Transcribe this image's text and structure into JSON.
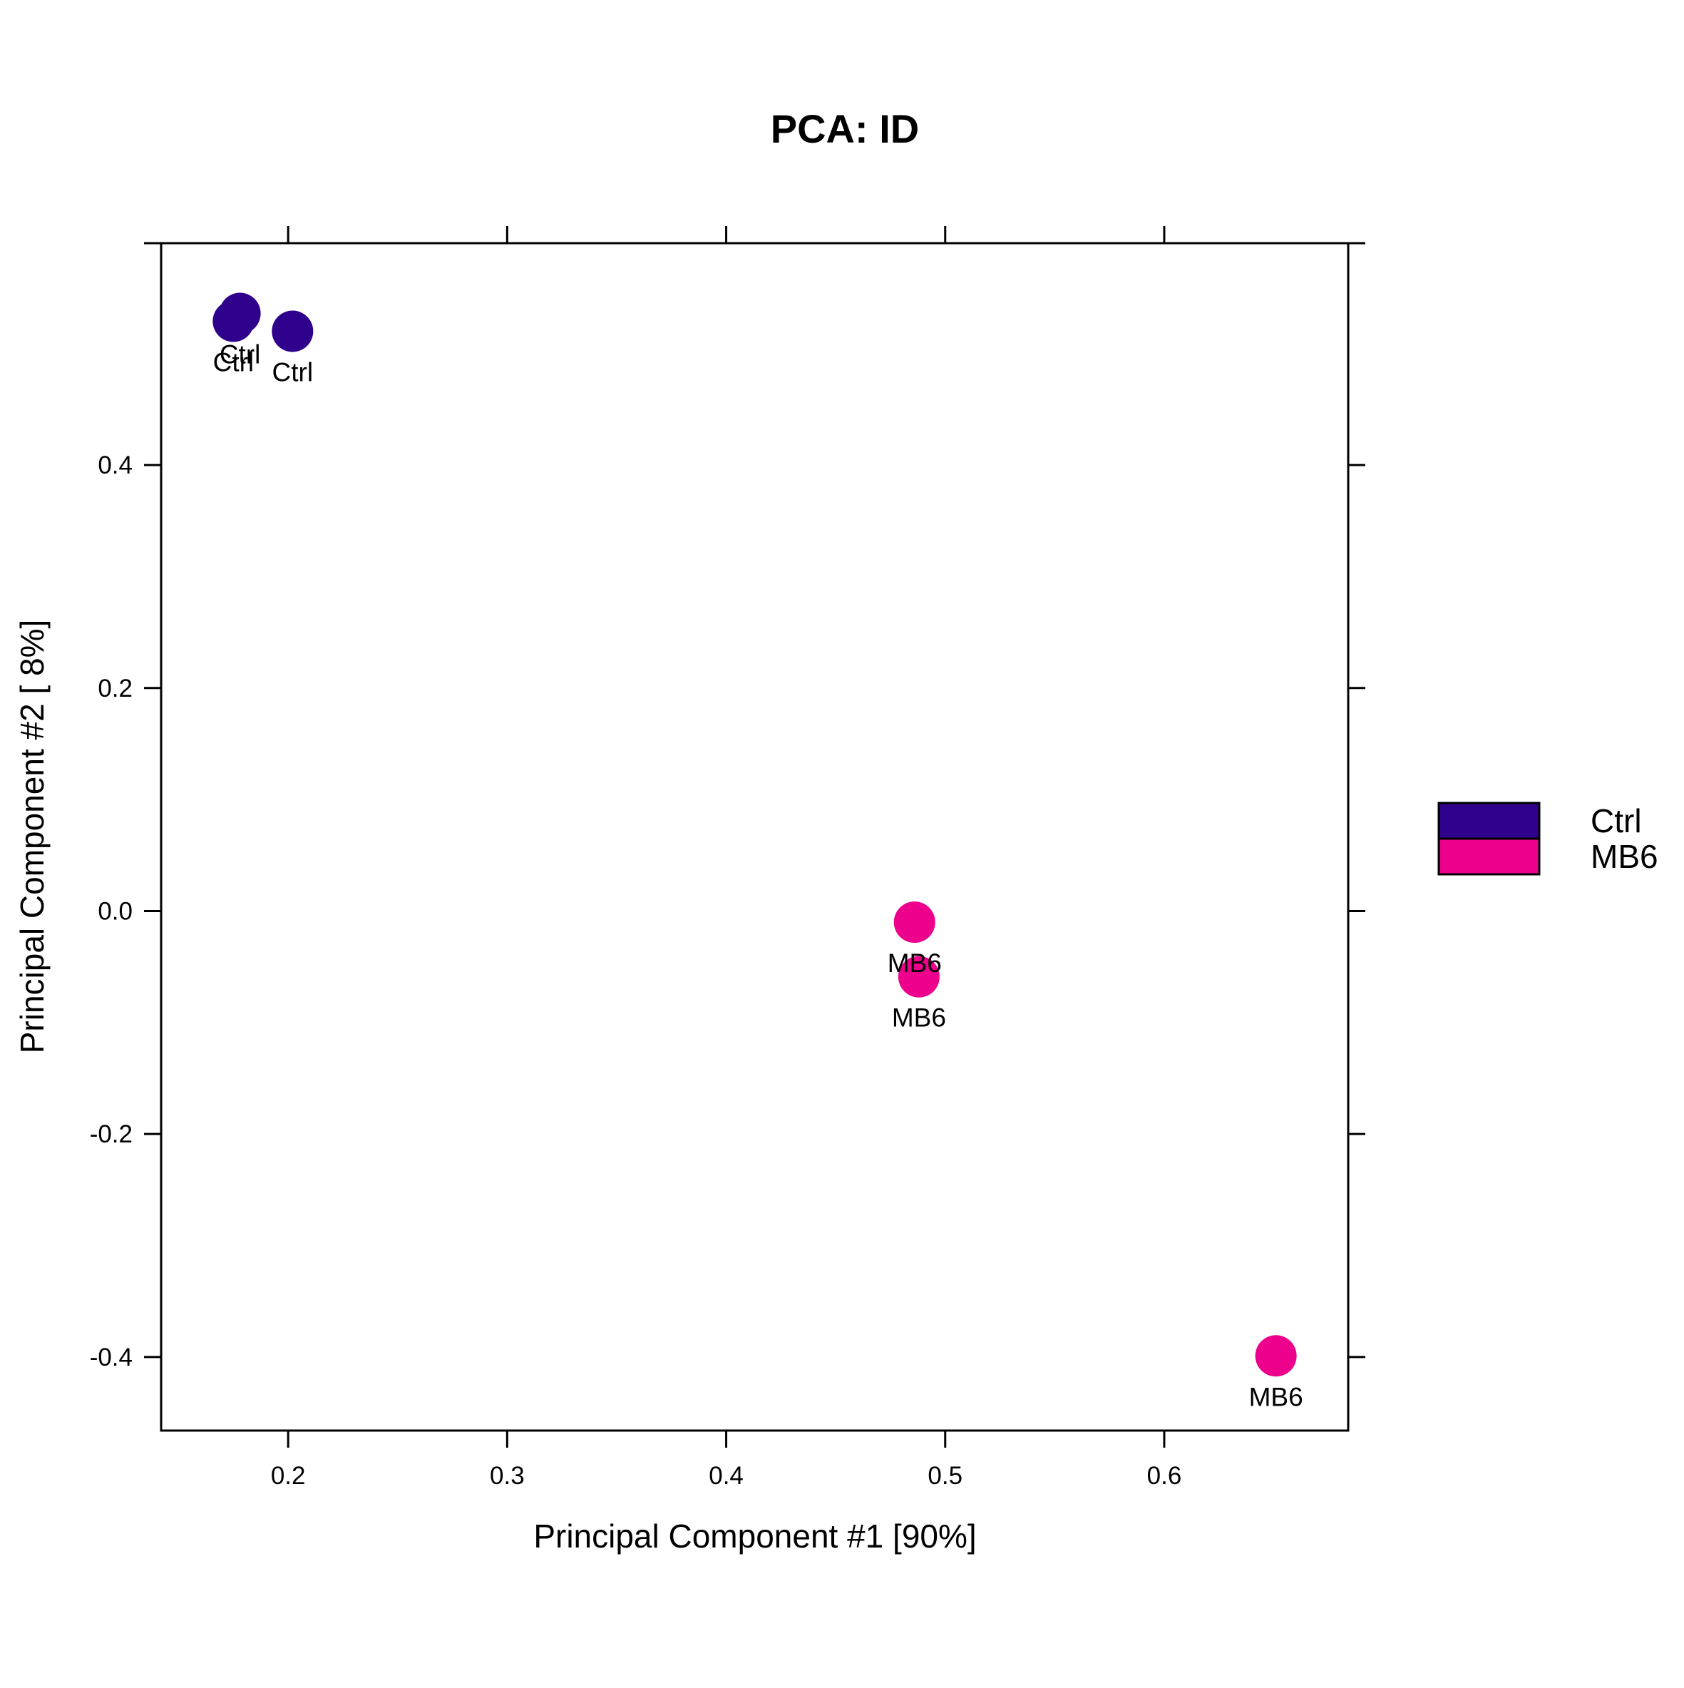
{
  "chart_data": {
    "type": "scatter",
    "title": "PCA: ID",
    "xlabel": "Principal Component #1 [90%]",
    "ylabel": "Principal Component #2 [ 8%]",
    "xlim": [
      0.142,
      0.684
    ],
    "ylim": [
      -0.466,
      0.599
    ],
    "xticks": [
      0.2,
      0.3,
      0.4,
      0.5,
      0.6
    ],
    "xtick_labels": [
      "0.2",
      "0.3",
      "0.4",
      "0.5",
      "0.6"
    ],
    "yticks": [
      -0.4,
      -0.2,
      0.0,
      0.2,
      0.4
    ],
    "ytick_labels": [
      "-0.4",
      "-0.2",
      "0.0",
      "0.2",
      "0.4"
    ],
    "grid": false,
    "legend_position": "right",
    "series": [
      {
        "name": "Ctrl",
        "color": "#2E008B",
        "points": [
          {
            "x": 0.175,
            "y": 0.529,
            "label": "Ctrl"
          },
          {
            "x": 0.178,
            "y": 0.536,
            "label": "Ctrl"
          },
          {
            "x": 0.202,
            "y": 0.52,
            "label": "Ctrl"
          }
        ]
      },
      {
        "name": "MB6",
        "color": "#EC008C",
        "points": [
          {
            "x": 0.486,
            "y": -0.01,
            "label": "MB6"
          },
          {
            "x": 0.488,
            "y": -0.059,
            "label": "MB6"
          },
          {
            "x": 0.651,
            "y": -0.399,
            "label": "MB6"
          }
        ]
      }
    ]
  }
}
